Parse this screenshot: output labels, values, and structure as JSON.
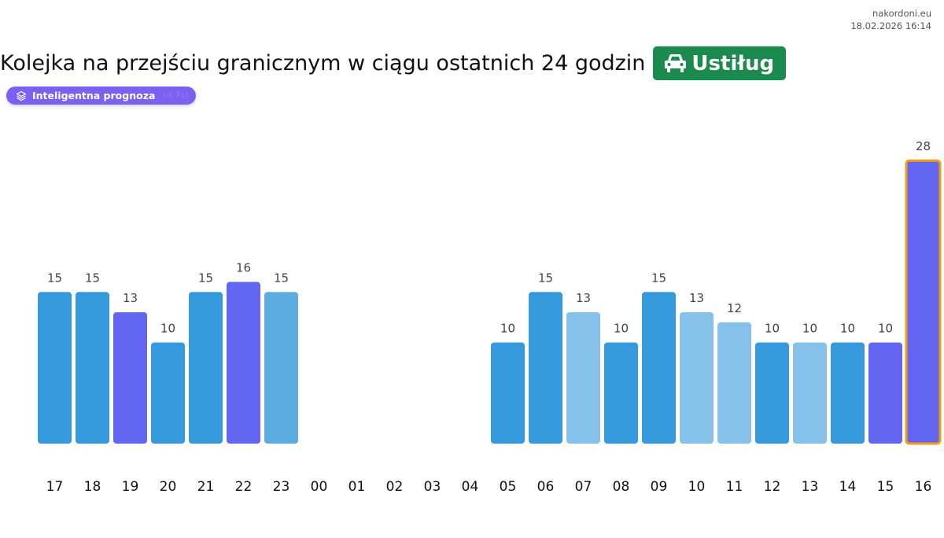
{
  "header": {
    "site": "nakordoni.eu",
    "timestamp": "18.02.2026 16:14",
    "title": "Kolejka na przejściu granicznym w ciągu ostatnich 24 godzin",
    "place": "Ustiług",
    "place_icon": "car-icon"
  },
  "forecast_chip": {
    "label": "Inteligentna prognoza",
    "extra": "(4:7s)",
    "icon": "layers-icon"
  },
  "colors": {
    "place_badge": "#1a8a4f",
    "chip": "#7b61f0",
    "bar_dark": "#3699db",
    "bar_medium": "#5dade2",
    "bar_light": "#85c1e9",
    "bar_purple": "#6366f1",
    "highlight_border": "#f39c12"
  },
  "chart_data": {
    "type": "bar",
    "title": "Kolejka na przejściu granicznym w ciągu ostatnich 24 godzin",
    "xlabel": "",
    "ylabel": "",
    "ylim": [
      0,
      28
    ],
    "grid": false,
    "categories": [
      "17",
      "18",
      "19",
      "20",
      "21",
      "22",
      "23",
      "00",
      "01",
      "02",
      "03",
      "04",
      "05",
      "06",
      "07",
      "08",
      "09",
      "10",
      "11",
      "12",
      "13",
      "14",
      "15",
      "16"
    ],
    "values": [
      15,
      15,
      13,
      10,
      15,
      16,
      15,
      null,
      null,
      null,
      null,
      null,
      10,
      15,
      13,
      10,
      15,
      13,
      12,
      10,
      10,
      10,
      10,
      28
    ],
    "bar_colors": [
      "#3699db",
      "#3699db",
      "#6366f1",
      "#3699db",
      "#3699db",
      "#6366f1",
      "#5dade2",
      null,
      null,
      null,
      null,
      null,
      "#3699db",
      "#3699db",
      "#85c1e9",
      "#3699db",
      "#3699db",
      "#85c1e9",
      "#85c1e9",
      "#3699db",
      "#85c1e9",
      "#3699db",
      "#6366f1",
      "#6366f1"
    ],
    "highlighted_category": "16"
  }
}
